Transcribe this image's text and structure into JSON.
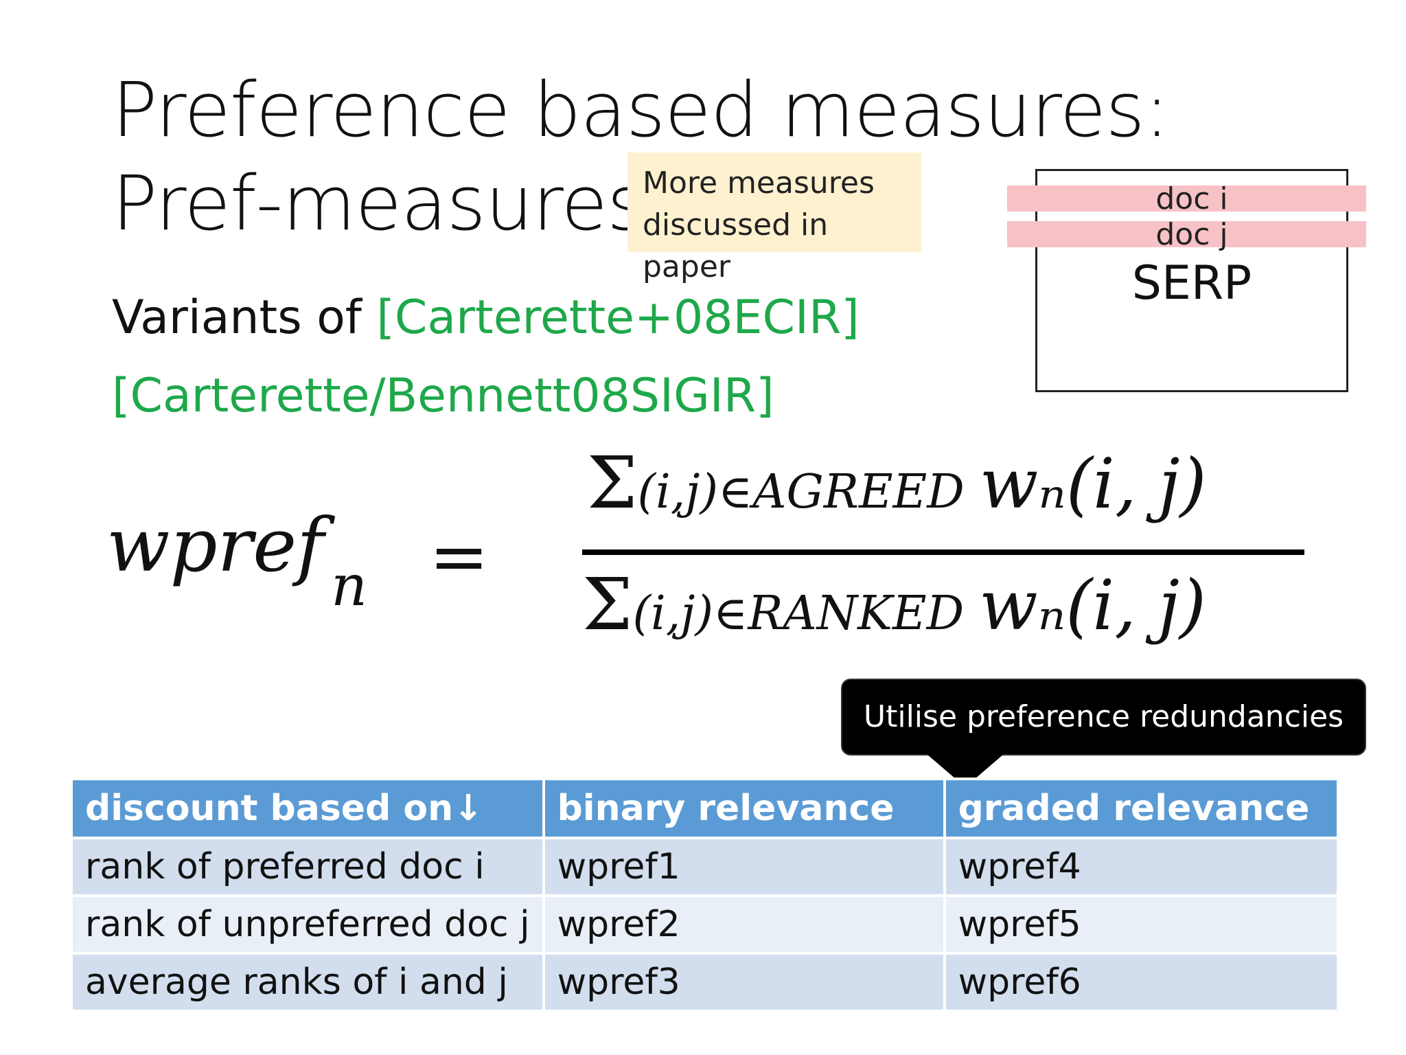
{
  "slide": {
    "title_line1": "Preference based measures:",
    "title_line2": "Pref-measures",
    "note_line1": "More measures",
    "note_line2": "discussed in paper",
    "variants_prefix": "Variants of ",
    "citation1": "[Carterette+08ECIR]",
    "citation2": "[Carterette/Bennett08SIGIR]"
  },
  "serp": {
    "doc_i": "doc i",
    "doc_j": "doc j",
    "label": "SERP",
    "highlight_color": "#f7c2c6"
  },
  "formula": {
    "lhs_main": "wpref",
    "lhs_sub": "n",
    "equals": "=",
    "sigma": "Σ",
    "numer_set": "(i,j)∈AGREED",
    "denom_set": "(i,j)∈RANKED",
    "weight": "wₙ(i, j)"
  },
  "callout": {
    "text": "Utilise preference redundancies"
  },
  "table": {
    "headers": [
      "discount based on↓",
      "binary relevance",
      "graded relevance"
    ],
    "rows": [
      [
        "rank of preferred doc i",
        "wpref1",
        "wpref4"
      ],
      [
        "rank of unpreferred doc j",
        "wpref2",
        "wpref5"
      ],
      [
        "average ranks of i and j",
        "wpref3",
        "wpref6"
      ]
    ],
    "header_color": "#5b9bd5",
    "row_color_dark": "#d2deed",
    "row_color_light": "#e9eff7"
  },
  "colors": {
    "citation_green": "#1ea84a",
    "note_background": "#fdf1cf"
  }
}
